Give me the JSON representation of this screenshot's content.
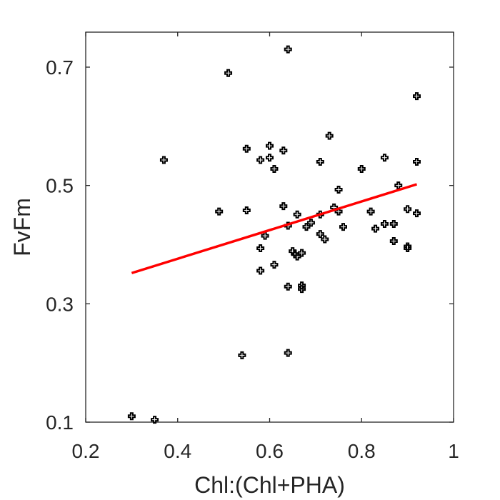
{
  "chart_data": {
    "type": "scatter",
    "xlabel": "Chl:(Chl+PHA)",
    "ylabel": "FvFm",
    "xlim": [
      0.2,
      1.0
    ],
    "ylim": [
      0.1,
      0.75
    ],
    "xticks": [
      0.2,
      0.4,
      0.6,
      0.8,
      1.0
    ],
    "xtick_labels": [
      "0.2",
      "0.4",
      "0.6",
      "0.8",
      "1"
    ],
    "yticks": [
      0.1,
      0.3,
      0.5,
      0.7
    ],
    "ytick_labels": [
      "0.1",
      "0.3",
      "0.5",
      "0.7"
    ],
    "grid": false,
    "marker_color": "#000000",
    "fit_color": "#ff0000",
    "points": [
      [
        0.3,
        0.11
      ],
      [
        0.35,
        0.104
      ],
      [
        0.37,
        0.543
      ],
      [
        0.49,
        0.456
      ],
      [
        0.51,
        0.69
      ],
      [
        0.54,
        0.213
      ],
      [
        0.55,
        0.562
      ],
      [
        0.55,
        0.458
      ],
      [
        0.58,
        0.543
      ],
      [
        0.58,
        0.394
      ],
      [
        0.58,
        0.356
      ],
      [
        0.59,
        0.415
      ],
      [
        0.6,
        0.567
      ],
      [
        0.6,
        0.547
      ],
      [
        0.61,
        0.528
      ],
      [
        0.61,
        0.366
      ],
      [
        0.63,
        0.559
      ],
      [
        0.63,
        0.465
      ],
      [
        0.64,
        0.73
      ],
      [
        0.64,
        0.432
      ],
      [
        0.64,
        0.329
      ],
      [
        0.64,
        0.217
      ],
      [
        0.65,
        0.389
      ],
      [
        0.655,
        0.384
      ],
      [
        0.66,
        0.451
      ],
      [
        0.66,
        0.38
      ],
      [
        0.67,
        0.386
      ],
      [
        0.67,
        0.331
      ],
      [
        0.67,
        0.325
      ],
      [
        0.68,
        0.43
      ],
      [
        0.69,
        0.437
      ],
      [
        0.71,
        0.54
      ],
      [
        0.71,
        0.451
      ],
      [
        0.71,
        0.418
      ],
      [
        0.72,
        0.409
      ],
      [
        0.73,
        0.584
      ],
      [
        0.74,
        0.463
      ],
      [
        0.75,
        0.493
      ],
      [
        0.75,
        0.456
      ],
      [
        0.76,
        0.43
      ],
      [
        0.8,
        0.528
      ],
      [
        0.82,
        0.456
      ],
      [
        0.83,
        0.427
      ],
      [
        0.85,
        0.547
      ],
      [
        0.85,
        0.435
      ],
      [
        0.87,
        0.435
      ],
      [
        0.87,
        0.406
      ],
      [
        0.88,
        0.5
      ],
      [
        0.9,
        0.46
      ],
      [
        0.9,
        0.397
      ],
      [
        0.9,
        0.394
      ],
      [
        0.92,
        0.651
      ],
      [
        0.92,
        0.54
      ],
      [
        0.92,
        0.453
      ]
    ],
    "fit_line": {
      "x": [
        0.3,
        0.92
      ],
      "y": [
        0.352,
        0.502
      ]
    }
  }
}
